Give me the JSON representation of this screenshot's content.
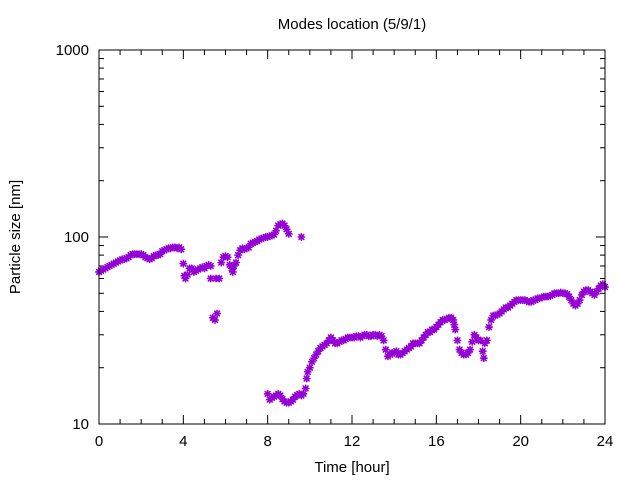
{
  "chart_data": {
    "type": "scatter",
    "title": "Modes location (5/9/1)",
    "xlabel": "Time [hour]",
    "ylabel": "Particle size [nm]",
    "xlim": [
      0,
      24
    ],
    "ylim": [
      10,
      1000
    ],
    "y_scale": "log",
    "x_ticks": [
      0,
      4,
      8,
      12,
      16,
      20,
      24
    ],
    "x_tick_labels": [
      "0",
      "4",
      "8",
      "12",
      "16",
      "20",
      "24"
    ],
    "y_ticks": [
      10,
      100,
      1000
    ],
    "y_tick_labels": [
      "10",
      "100",
      "1000"
    ],
    "grid": false,
    "legend": "none",
    "marker_color": "#9400d3",
    "series": [
      {
        "points": [
          [
            0.0,
            65
          ],
          [
            0.1,
            66
          ],
          [
            0.2,
            67
          ],
          [
            0.3,
            68
          ],
          [
            0.4,
            69
          ],
          [
            0.5,
            70
          ],
          [
            0.6,
            71
          ],
          [
            0.7,
            72
          ],
          [
            0.8,
            73
          ],
          [
            0.9,
            74
          ],
          [
            1.0,
            75
          ],
          [
            1.1,
            76
          ],
          [
            1.2,
            76
          ],
          [
            1.3,
            77
          ],
          [
            1.4,
            78
          ],
          [
            1.5,
            80
          ],
          [
            1.6,
            81
          ],
          [
            1.7,
            81
          ],
          [
            1.8,
            81
          ],
          [
            1.9,
            81
          ],
          [
            2.0,
            81
          ],
          [
            2.1,
            80
          ],
          [
            2.2,
            78
          ],
          [
            2.3,
            77
          ],
          [
            2.4,
            76
          ],
          [
            2.5,
            77
          ],
          [
            2.6,
            79
          ],
          [
            2.7,
            80
          ],
          [
            2.8,
            80
          ],
          [
            2.9,
            81
          ],
          [
            3.0,
            84
          ],
          [
            3.1,
            85
          ],
          [
            3.2,
            86
          ],
          [
            3.3,
            87
          ],
          [
            3.4,
            87
          ],
          [
            3.5,
            88
          ],
          [
            3.6,
            88
          ],
          [
            3.7,
            87
          ],
          [
            3.8,
            88
          ],
          [
            3.9,
            86
          ],
          [
            4.0,
            72
          ],
          [
            4.05,
            62
          ],
          [
            4.1,
            60
          ],
          [
            4.2,
            63
          ],
          [
            4.3,
            68
          ],
          [
            4.4,
            68
          ],
          [
            4.5,
            65
          ],
          [
            4.6,
            66
          ],
          [
            4.7,
            67
          ],
          [
            4.8,
            68
          ],
          [
            4.9,
            69
          ],
          [
            5.0,
            68
          ],
          [
            5.1,
            70
          ],
          [
            5.2,
            71
          ],
          [
            5.3,
            70
          ],
          [
            5.3,
            60
          ],
          [
            5.4,
            37
          ],
          [
            5.5,
            36
          ],
          [
            5.55,
            60
          ],
          [
            5.6,
            39
          ],
          [
            5.7,
            60
          ],
          [
            5.8,
            73
          ],
          [
            5.9,
            78
          ],
          [
            6.0,
            79
          ],
          [
            6.1,
            78
          ],
          [
            6.2,
            71
          ],
          [
            6.3,
            68
          ],
          [
            6.35,
            65
          ],
          [
            6.4,
            70
          ],
          [
            6.5,
            73
          ],
          [
            6.6,
            80
          ],
          [
            6.7,
            85
          ],
          [
            6.8,
            87
          ],
          [
            6.9,
            86
          ],
          [
            7.0,
            87
          ],
          [
            7.1,
            88
          ],
          [
            7.2,
            92
          ],
          [
            7.3,
            93
          ],
          [
            7.4,
            94
          ],
          [
            7.5,
            95
          ],
          [
            7.6,
            97
          ],
          [
            7.7,
            98
          ],
          [
            7.8,
            99
          ],
          [
            7.9,
            100
          ],
          [
            8.0,
            100
          ],
          [
            8.1,
            101
          ],
          [
            8.2,
            102
          ],
          [
            8.3,
            103
          ],
          [
            8.4,
            108
          ],
          [
            8.5,
            115
          ],
          [
            8.6,
            117
          ],
          [
            8.7,
            118
          ],
          [
            8.8,
            115
          ],
          [
            8.9,
            110
          ],
          [
            9.0,
            104
          ],
          [
            9.6,
            100
          ],
          [
            8.0,
            14.5
          ],
          [
            8.1,
            13.5
          ],
          [
            8.2,
            13.8
          ],
          [
            8.3,
            14.0
          ],
          [
            8.4,
            14.2
          ],
          [
            8.5,
            14.5
          ],
          [
            8.6,
            14.2
          ],
          [
            8.7,
            13.6
          ],
          [
            8.8,
            13.2
          ],
          [
            8.9,
            13.0
          ],
          [
            9.0,
            13.0
          ],
          [
            9.1,
            13.2
          ],
          [
            9.2,
            13.5
          ],
          [
            9.3,
            14.0
          ],
          [
            9.4,
            14.3
          ],
          [
            9.5,
            14.5
          ],
          [
            9.6,
            14.2
          ],
          [
            9.7,
            14.5
          ],
          [
            9.8,
            15.5
          ],
          [
            9.85,
            17.5
          ],
          [
            9.9,
            19
          ],
          [
            10.0,
            20
          ],
          [
            10.1,
            21.5
          ],
          [
            10.2,
            22.5
          ],
          [
            10.3,
            23.5
          ],
          [
            10.4,
            24.5
          ],
          [
            10.5,
            25.5
          ],
          [
            10.6,
            26
          ],
          [
            10.7,
            26.5
          ],
          [
            10.8,
            27
          ],
          [
            10.9,
            28
          ],
          [
            11.0,
            29
          ],
          [
            11.1,
            28
          ],
          [
            11.2,
            27
          ],
          [
            11.3,
            27
          ],
          [
            11.4,
            27.5
          ],
          [
            11.5,
            28
          ],
          [
            11.6,
            28
          ],
          [
            11.7,
            28.5
          ],
          [
            11.8,
            29
          ],
          [
            11.9,
            29
          ],
          [
            12.0,
            29
          ],
          [
            12.1,
            29
          ],
          [
            12.2,
            29.5
          ],
          [
            12.3,
            29.5
          ],
          [
            12.4,
            29
          ],
          [
            12.5,
            29.5
          ],
          [
            12.6,
            30
          ],
          [
            12.7,
            30
          ],
          [
            12.8,
            29.5
          ],
          [
            12.9,
            29.5
          ],
          [
            13.0,
            30
          ],
          [
            13.1,
            30
          ],
          [
            13.2,
            29.5
          ],
          [
            13.3,
            30
          ],
          [
            13.4,
            29.5
          ],
          [
            13.5,
            28
          ],
          [
            13.6,
            25
          ],
          [
            13.7,
            23
          ],
          [
            13.8,
            23.5
          ],
          [
            13.9,
            24
          ],
          [
            14.0,
            24
          ],
          [
            14.1,
            24.5
          ],
          [
            14.2,
            23.5
          ],
          [
            14.3,
            23.5
          ],
          [
            14.4,
            24
          ],
          [
            14.5,
            24.5
          ],
          [
            14.6,
            25
          ],
          [
            14.7,
            25.5
          ],
          [
            14.8,
            26
          ],
          [
            14.9,
            27
          ],
          [
            15.0,
            27
          ],
          [
            15.1,
            27
          ],
          [
            15.2,
            27
          ],
          [
            15.3,
            28
          ],
          [
            15.4,
            29
          ],
          [
            15.5,
            30
          ],
          [
            15.6,
            31
          ],
          [
            15.7,
            31
          ],
          [
            15.8,
            32
          ],
          [
            15.9,
            32
          ],
          [
            16.0,
            33
          ],
          [
            16.1,
            34
          ],
          [
            16.2,
            35
          ],
          [
            16.3,
            36
          ],
          [
            16.4,
            36
          ],
          [
            16.5,
            36.5
          ],
          [
            16.6,
            37
          ],
          [
            16.7,
            37
          ],
          [
            16.8,
            36
          ],
          [
            16.85,
            34
          ],
          [
            16.9,
            32
          ],
          [
            17.0,
            28
          ],
          [
            17.1,
            25
          ],
          [
            17.2,
            24
          ],
          [
            17.3,
            23.5
          ],
          [
            17.4,
            23.5
          ],
          [
            17.5,
            24
          ],
          [
            17.6,
            25
          ],
          [
            17.7,
            27.5
          ],
          [
            17.8,
            30
          ],
          [
            17.9,
            29
          ],
          [
            18.0,
            28
          ],
          [
            18.1,
            28
          ],
          [
            18.2,
            24.5
          ],
          [
            18.25,
            22.5
          ],
          [
            18.3,
            27
          ],
          [
            18.4,
            28
          ],
          [
            18.5,
            33
          ],
          [
            18.6,
            36
          ],
          [
            18.7,
            38
          ],
          [
            18.8,
            38
          ],
          [
            18.9,
            38.5
          ],
          [
            19.0,
            39
          ],
          [
            19.1,
            40
          ],
          [
            19.2,
            41
          ],
          [
            19.3,
            42
          ],
          [
            19.4,
            42
          ],
          [
            19.5,
            43
          ],
          [
            19.6,
            44
          ],
          [
            19.7,
            45
          ],
          [
            19.8,
            46
          ],
          [
            19.9,
            46
          ],
          [
            20.0,
            46
          ],
          [
            20.1,
            46
          ],
          [
            20.2,
            46
          ],
          [
            20.3,
            45.5
          ],
          [
            20.4,
            45
          ],
          [
            20.5,
            45
          ],
          [
            20.6,
            46
          ],
          [
            20.7,
            46
          ],
          [
            20.8,
            47
          ],
          [
            20.9,
            47
          ],
          [
            21.0,
            47.5
          ],
          [
            21.1,
            48
          ],
          [
            21.2,
            48
          ],
          [
            21.3,
            48
          ],
          [
            21.4,
            48.5
          ],
          [
            21.5,
            49
          ],
          [
            21.6,
            50
          ],
          [
            21.7,
            50
          ],
          [
            21.8,
            50
          ],
          [
            21.9,
            50.5
          ],
          [
            22.0,
            50
          ],
          [
            22.1,
            50
          ],
          [
            22.2,
            49.5
          ],
          [
            22.3,
            48
          ],
          [
            22.4,
            46
          ],
          [
            22.5,
            44
          ],
          [
            22.6,
            43
          ],
          [
            22.7,
            44
          ],
          [
            22.8,
            46
          ],
          [
            22.9,
            49
          ],
          [
            23.0,
            51
          ],
          [
            23.1,
            52
          ],
          [
            23.2,
            52
          ],
          [
            23.3,
            51
          ],
          [
            23.4,
            50
          ],
          [
            23.5,
            49
          ],
          [
            23.6,
            51
          ],
          [
            23.7,
            53
          ],
          [
            23.8,
            55
          ],
          [
            23.9,
            56
          ],
          [
            24.0,
            54
          ]
        ]
      }
    ]
  }
}
